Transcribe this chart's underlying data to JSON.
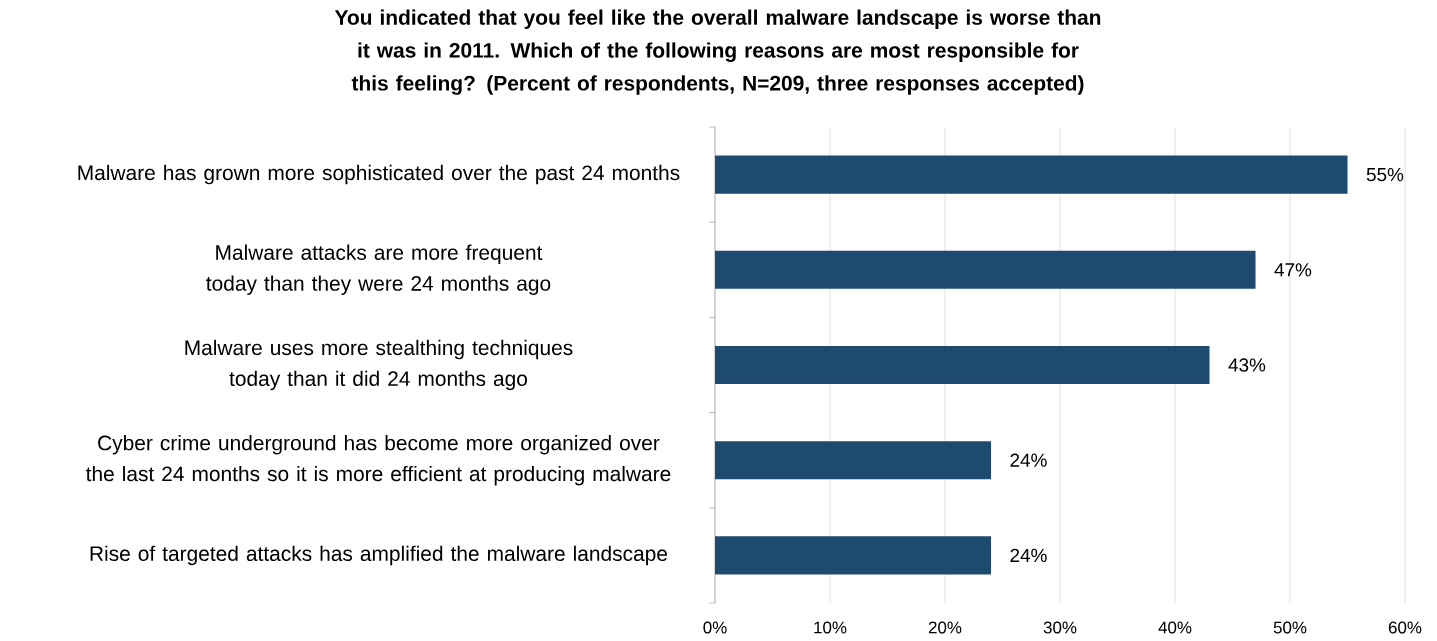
{
  "chart_data": {
    "type": "bar",
    "orientation": "horizontal",
    "title": "**You indicated that you feel like the overall malware landscape is worse than it was in 2011. Which of the following reasons are most responsible for this feeling?  (Percent of respondents, N=209, three responses accepted)**",
    "categories": [
      "Malware has grown more sophisticated over the past 24 months",
      "Malware attacks are more frequent today than they were 24 months ago",
      "Malware uses more stealthing techniques today than it did 24 months ago",
      "Cyber crime underground has become more organized over the last 24 months so it is more efficient at producing malware",
      "Rise of targeted attacks has amplified the malware landscape"
    ],
    "values": [
      55,
      47,
      43,
      24,
      24
    ],
    "value_labels": [
      "55%",
      "47%",
      "43%",
      "24%",
      "24%"
    ],
    "color": "#1f4a70",
    "xlim": [
      0,
      60
    ],
    "xticks": [
      {
        "value": 0,
        "label": "0%"
      },
      {
        "value": 10,
        "label": "10%"
      },
      {
        "value": 20,
        "label": "20%"
      },
      {
        "value": 30,
        "label": "30%"
      },
      {
        "value": 40,
        "label": "40%"
      },
      {
        "value": 50,
        "label": "50%"
      },
      {
        "value": 60,
        "label": "60%"
      }
    ],
    "grid": "x"
  }
}
